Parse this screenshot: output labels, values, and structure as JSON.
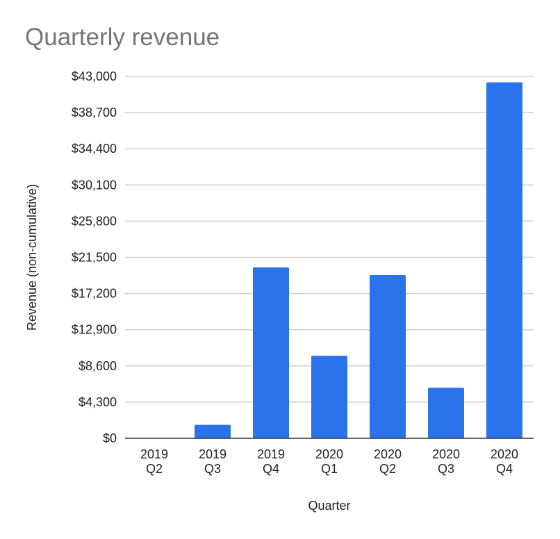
{
  "chart_data": {
    "type": "bar",
    "title": "Quarterly revenue",
    "xlabel": "Quarter",
    "ylabel": "Revenue (non-cumulative)",
    "categories": [
      [
        "2019",
        "Q2"
      ],
      [
        "2019",
        "Q3"
      ],
      [
        "2019",
        "Q4"
      ],
      [
        "2020",
        "Q1"
      ],
      [
        "2020",
        "Q2"
      ],
      [
        "2020",
        "Q3"
      ],
      [
        "2020",
        "Q4"
      ]
    ],
    "values": [
      0,
      1600,
      20300,
      9800,
      19400,
      6000,
      42300
    ],
    "ylim": [
      0,
      43000
    ],
    "yticks": [
      0,
      4300,
      8600,
      12900,
      17200,
      21500,
      25800,
      30100,
      34400,
      38700,
      43000
    ],
    "ytick_labels": [
      "$0",
      "$4,300",
      "$8,600",
      "$12,900",
      "$17,200",
      "$21,500",
      "$25,800",
      "$30,100",
      "$34,400",
      "$38,700",
      "$43,000"
    ],
    "grid": true,
    "legend": "none",
    "colors": {
      "bar": "#2b73eb",
      "grid": "#d0d0d0",
      "axis": "#333333",
      "title": "#757575"
    }
  }
}
